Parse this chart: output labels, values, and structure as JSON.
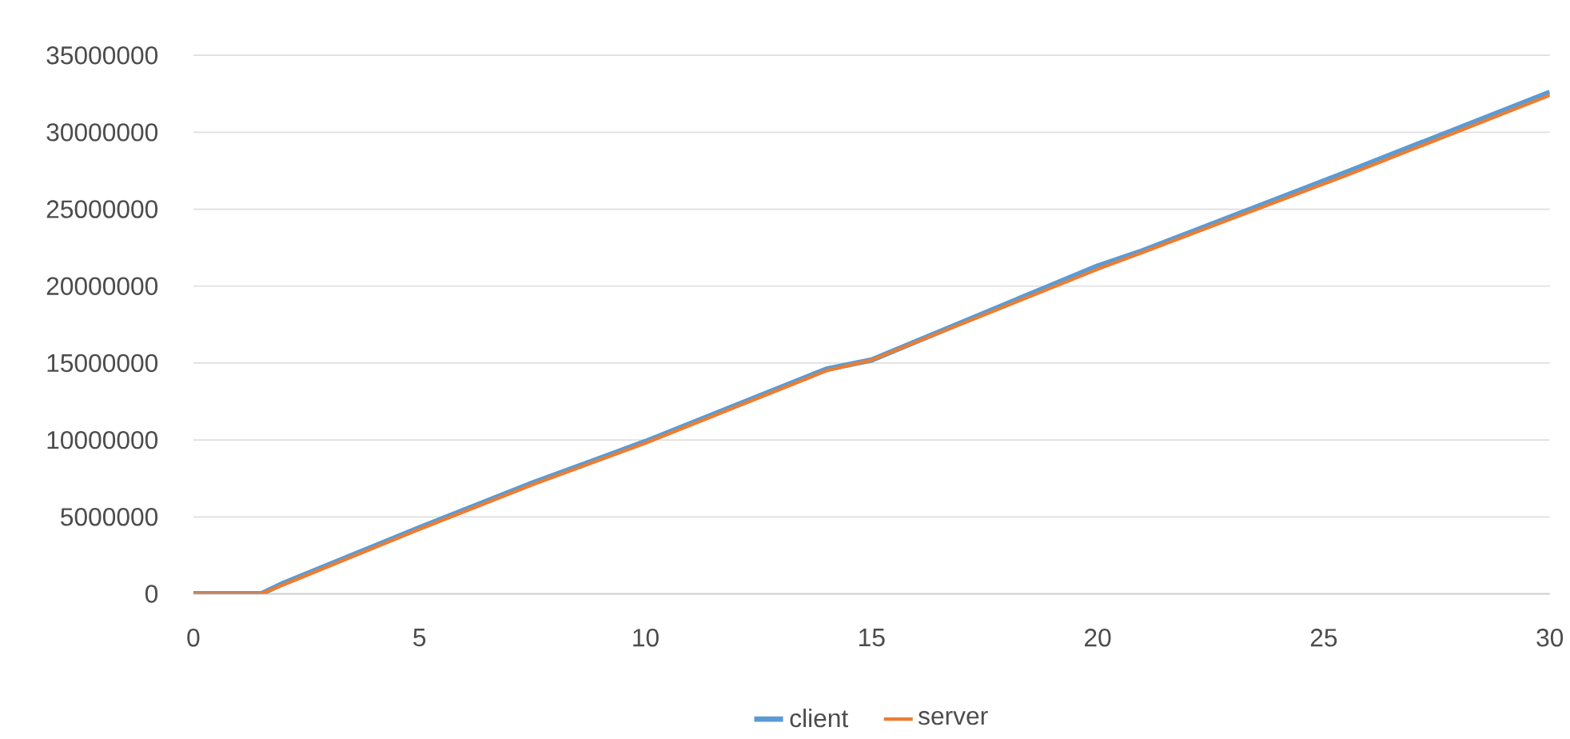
{
  "chart_data": {
    "type": "line",
    "x": [
      0,
      1.5,
      2,
      5,
      7.5,
      10,
      14,
      15,
      20,
      21,
      25.5,
      30
    ],
    "series": [
      {
        "name": "client",
        "color": "#5b9bd5",
        "values": [
          0,
          0,
          700000,
          4300000,
          7200000,
          9900000,
          14600000,
          15200000,
          21300000,
          22300000,
          27400000,
          32600000
        ]
      },
      {
        "name": "server",
        "color": "#ed7d31",
        "values": [
          0,
          0,
          600000,
          4200000,
          7100000,
          9800000,
          14500000,
          15200000,
          21100000,
          22200000,
          27200000,
          32400000
        ]
      }
    ],
    "xlim": [
      0,
      30
    ],
    "xticks": [
      0,
      5,
      10,
      15,
      20,
      25,
      30
    ],
    "ylim": [
      0,
      35000000
    ],
    "yticks": [
      0,
      5000000,
      10000000,
      15000000,
      20000000,
      25000000,
      30000000,
      35000000
    ],
    "grid": "y",
    "legend": "bottom",
    "marker": "none",
    "line_style": "solid"
  }
}
